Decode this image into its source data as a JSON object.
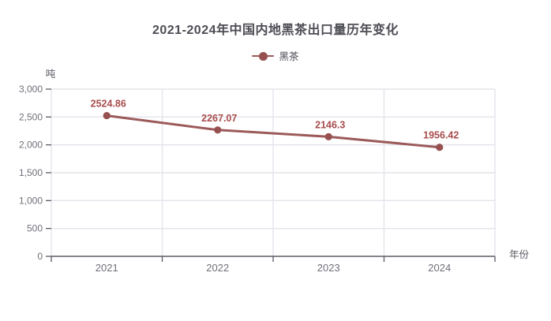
{
  "chart_data": {
    "type": "line",
    "title": "2021-2024年中国内地黑茶出口量历年变化",
    "unit_label": "吨",
    "xlabel": "年份",
    "categories": [
      "2021",
      "2022",
      "2023",
      "2024"
    ],
    "series": [
      {
        "name": "黑茶",
        "values": [
          2524.86,
          2267.07,
          2146.3,
          1956.42
        ]
      }
    ],
    "ylim": [
      0,
      3000
    ],
    "ytick_step": 500,
    "ytick_labels": [
      "0",
      "500",
      "1,000",
      "1,500",
      "2,000",
      "2,500",
      "3,000"
    ],
    "grid": true,
    "legend_position": "top-center",
    "colors": {
      "line": "#9c5a5a",
      "marker": "#96504f",
      "data_label": "#a84c4c",
      "grid": "#e3e3ec",
      "axis": "#5b5b66",
      "tick_label": "#6f6f79",
      "axis_name": "#5a5a64",
      "title": "#4c4c54",
      "background": "#ffffff"
    }
  }
}
